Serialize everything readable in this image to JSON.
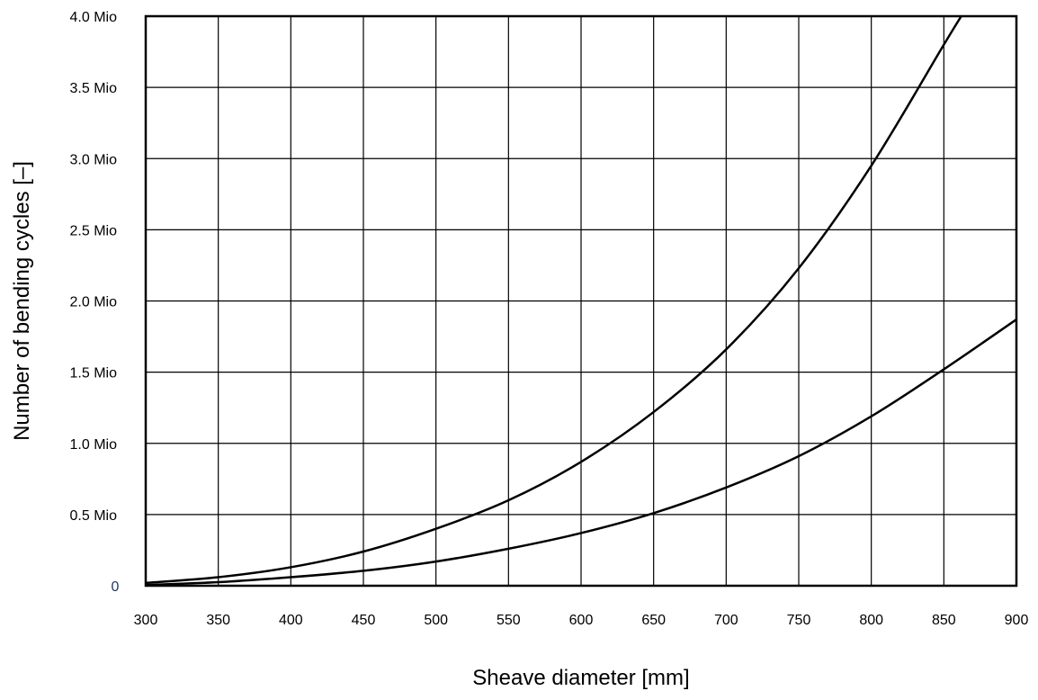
{
  "chart_data": {
    "type": "line",
    "title": "",
    "xlabel": "Sheave diameter [mm]",
    "ylabel": "Number of bending cycles [–]",
    "xlim": [
      300,
      900
    ],
    "ylim": [
      0,
      4000000
    ],
    "grid": true,
    "legend": "none",
    "x_ticks": [
      300,
      350,
      400,
      450,
      500,
      550,
      600,
      650,
      700,
      750,
      800,
      850,
      900
    ],
    "x_tick_labels": [
      "300",
      "350",
      "400",
      "450",
      "500",
      "550",
      "600",
      "650",
      "700",
      "750",
      "800",
      "850",
      "900"
    ],
    "y_ticks": [
      0,
      500000,
      1000000,
      1500000,
      2000000,
      2500000,
      3000000,
      3500000,
      4000000
    ],
    "y_tick_labels": [
      "0",
      "0.5 Mio",
      "1.0 Mio",
      "1.5 Mio",
      "2.0 Mio",
      "2.5 Mio",
      "3.0 Mio",
      "3.5 Mio",
      "4.0 Mio"
    ],
    "line_color": "#000000",
    "series": [
      {
        "x": [
          300,
          350,
          400,
          450,
          500,
          550,
          600,
          650,
          700,
          750,
          800,
          850,
          862
        ],
        "y": [
          20000,
          60000,
          130000,
          240000,
          400000,
          600000,
          870000,
          1220000,
          1660000,
          2230000,
          2950000,
          3800000,
          4000000
        ]
      },
      {
        "x": [
          300,
          350,
          400,
          450,
          500,
          550,
          600,
          650,
          700,
          750,
          800,
          850,
          900
        ],
        "y": [
          5000,
          25000,
          60000,
          105000,
          170000,
          260000,
          370000,
          510000,
          690000,
          910000,
          1190000,
          1520000,
          1870000
        ]
      }
    ]
  }
}
